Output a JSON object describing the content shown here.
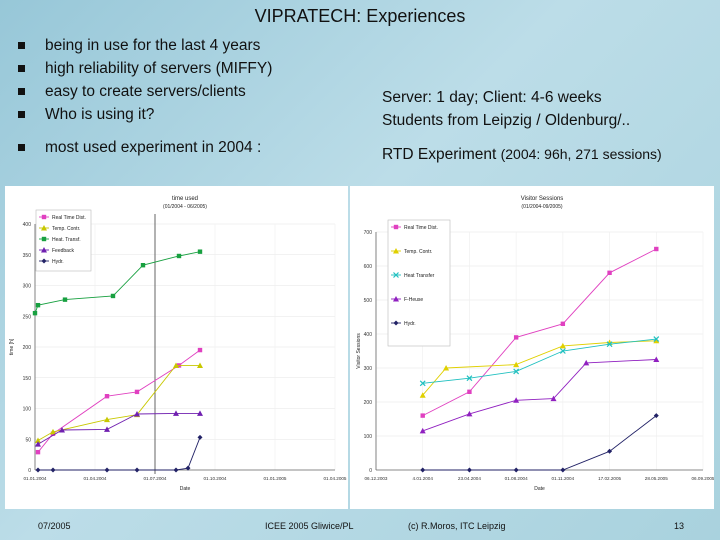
{
  "slide": {
    "title": "VIPRATECH: Experiences",
    "bullets": [
      "being in use for the last 4 years",
      "high reliability of servers (MIFFY)",
      "easy to create servers/clients",
      "Who is using it?",
      "most used experiment in 2004 :"
    ],
    "right_lines": [
      "Server: 1 day; Client: 4-6 weeks",
      "Students from Leipzig / Oldenburg/.."
    ],
    "rtd_label": "RTD Experiment",
    "rtd_detail": "(2004: 96h, 271 sessions)",
    "footer": {
      "date": "07/2005",
      "conference": "ICEE 2005 Gliwice/PL",
      "copyright": "(c) R.Moros, ITC Leipzig",
      "page": "13"
    },
    "colors": {
      "background": "#a9d2de"
    }
  },
  "chart_data": [
    {
      "type": "line",
      "title": "time used",
      "subtitle": "(01/2004 - 06/2005)",
      "xlabel": "Date",
      "ylabel": "time [h]",
      "categories": [
        "01.01.2004",
        "01.04.2004",
        "01.07.2004",
        "01.10.2004",
        "01.01.2005",
        "01.04.2005"
      ],
      "ylim": [
        0,
        400
      ],
      "yticks": [
        0,
        50,
        100,
        150,
        200,
        250,
        300,
        350,
        400
      ],
      "legend_position": "top-left",
      "series": [
        {
          "name": "Real Time Dist.",
          "color": "#e040c0",
          "marker": "square",
          "points": [
            [
              0.05,
              29
            ],
            [
              0.3,
              59
            ],
            [
              1.2,
              120
            ],
            [
              1.7,
              127
            ],
            [
              2.4,
              170
            ],
            [
              2.75,
              195
            ]
          ]
        },
        {
          "name": "Temp. Contr.",
          "color": "#c8c800",
          "marker": "triangle",
          "points": [
            [
              0.05,
              48
            ],
            [
              0.3,
              62
            ],
            [
              1.2,
              82
            ],
            [
              1.7,
              90
            ],
            [
              2.35,
              170
            ],
            [
              2.75,
              170
            ]
          ]
        },
        {
          "name": "Heat. Transf.",
          "color": "#18a040",
          "marker": "square",
          "points": [
            [
              0.0,
              255
            ],
            [
              0.05,
              268
            ],
            [
              0.5,
              277
            ],
            [
              1.3,
              283
            ],
            [
              1.8,
              333
            ],
            [
              2.4,
              348
            ],
            [
              2.75,
              355
            ]
          ]
        },
        {
          "name": "Feedback",
          "color": "#7020b0",
          "marker": "triangle",
          "points": [
            [
              0.05,
              42
            ],
            [
              0.45,
              65
            ],
            [
              1.2,
              66
            ],
            [
              1.7,
              91
            ],
            [
              2.35,
              92
            ],
            [
              2.75,
              92
            ]
          ]
        },
        {
          "name": "Hydr.",
          "color": "#222266",
          "marker": "diamond",
          "points": [
            [
              0.05,
              0
            ],
            [
              0.3,
              0
            ],
            [
              1.2,
              0
            ],
            [
              1.7,
              0
            ],
            [
              2.35,
              0
            ],
            [
              2.55,
              3
            ],
            [
              2.75,
              53
            ]
          ]
        }
      ]
    },
    {
      "type": "line",
      "title": "Visitor Sessions",
      "subtitle": "(01/2004-09/2005)",
      "xlabel": "Date",
      "ylabel": "Visitor Sessions",
      "categories": [
        "06.12.2003",
        "4.01.2004",
        "23.04.2004",
        "01.08.2004",
        "01.11.2004",
        "17.02.2005",
        "28.05.2005",
        "06.09.2005"
      ],
      "ylim": [
        0,
        700
      ],
      "yticks": [
        0,
        100,
        200,
        300,
        400,
        500,
        600,
        700
      ],
      "legend_position": "top-left",
      "series": [
        {
          "name": "Real Time Dist.",
          "color": "#e040c0",
          "marker": "square",
          "points": [
            [
              1.0,
              160
            ],
            [
              2.0,
              230
            ],
            [
              3.0,
              390
            ],
            [
              4.0,
              430
            ],
            [
              5.0,
              580
            ],
            [
              6.0,
              650
            ]
          ]
        },
        {
          "name": "Temp. Contr.",
          "color": "#e0d000",
          "marker": "triangle",
          "points": [
            [
              1.0,
              220
            ],
            [
              1.5,
              300
            ],
            [
              3.0,
              310
            ],
            [
              4.0,
              365
            ],
            [
              5.0,
              375
            ],
            [
              6.0,
              380
            ]
          ]
        },
        {
          "name": "Heat Transfer",
          "color": "#20c0c0",
          "marker": "cross",
          "points": [
            [
              1.0,
              255
            ],
            [
              2.0,
              270
            ],
            [
              3.0,
              290
            ],
            [
              4.0,
              350
            ],
            [
              5.0,
              370
            ],
            [
              6.0,
              385
            ]
          ]
        },
        {
          "name": "F-Heuse",
          "color": "#9020c0",
          "marker": "triangle",
          "points": [
            [
              1.0,
              115
            ],
            [
              2.0,
              165
            ],
            [
              3.0,
              205
            ],
            [
              3.8,
              210
            ],
            [
              4.5,
              315
            ],
            [
              6.0,
              325
            ]
          ]
        },
        {
          "name": "Hydr.",
          "color": "#222266",
          "marker": "diamond",
          "points": [
            [
              1.0,
              0
            ],
            [
              2.0,
              0
            ],
            [
              3.0,
              0
            ],
            [
              4.0,
              0
            ],
            [
              5.0,
              55
            ],
            [
              6.0,
              160
            ]
          ]
        }
      ]
    }
  ]
}
